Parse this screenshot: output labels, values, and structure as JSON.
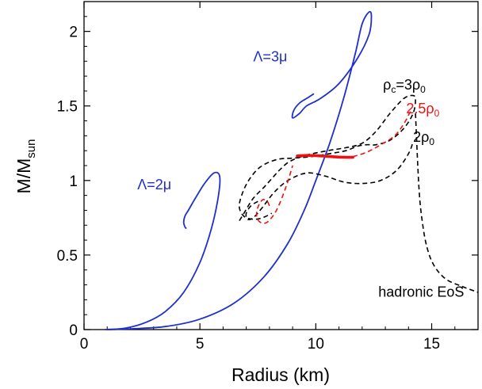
{
  "chart_data": {
    "type": "line",
    "xlabel": "Radius (km)",
    "ylabel_main": "M/M",
    "ylabel_sub": "sun",
    "xlim": [
      0,
      17
    ],
    "ylim": [
      0,
      2.2
    ],
    "xticks": [
      0,
      5,
      10,
      15
    ],
    "yticks": [
      0,
      0.5,
      1,
      1.5,
      2
    ],
    "xtick_labels": [
      "0",
      "5",
      "10",
      "15"
    ],
    "ytick_labels": [
      "0",
      "0.5",
      "1",
      "1.5",
      "2"
    ],
    "grid": false,
    "series": [
      {
        "key": "lambda-3mu",
        "style": "solid",
        "color": "#1f2fcc",
        "x": [
          1.0,
          2.0,
          3.5,
          5.0,
          6.5,
          7.8,
          8.8,
          9.5,
          10.0,
          10.6,
          11.2,
          11.7,
          12.0,
          12.3,
          12.4,
          12.3,
          11.8,
          11.0,
          10.2,
          9.6,
          9.3,
          9.0,
          9.05,
          9.3,
          9.6,
          9.8,
          9.9
        ],
        "y": [
          0.0,
          0.005,
          0.02,
          0.07,
          0.18,
          0.36,
          0.58,
          0.8,
          1.0,
          1.25,
          1.55,
          1.85,
          2.05,
          2.13,
          2.1,
          1.98,
          1.82,
          1.65,
          1.55,
          1.5,
          1.45,
          1.42,
          1.47,
          1.52,
          1.55,
          1.57,
          1.58
        ]
      },
      {
        "key": "lambda-2mu",
        "style": "solid",
        "color": "#1f2fcc",
        "x": [
          0.9,
          1.8,
          2.7,
          3.5,
          4.3,
          5.0,
          5.5,
          5.8,
          5.85,
          5.6,
          5.2,
          4.8,
          4.5,
          4.35,
          4.3,
          4.35,
          4.4
        ],
        "y": [
          0.0,
          0.01,
          0.05,
          0.12,
          0.25,
          0.45,
          0.68,
          0.9,
          1.03,
          1.05,
          0.98,
          0.88,
          0.8,
          0.76,
          0.72,
          0.69,
          0.68
        ]
      },
      {
        "key": "rho-3rho0",
        "style": "dashed",
        "color": "#000000",
        "x": [
          6.7,
          6.9,
          7.3,
          7.8,
          8.2,
          8.5,
          8.9,
          9.6,
          10.5,
          11.3,
          12.0,
          12.6,
          13.2,
          13.8,
          14.2,
          14.3,
          14.2,
          13.8,
          13.2,
          12.6,
          12.2,
          11.8,
          11.3,
          10.6,
          9.8,
          9.0,
          8.3,
          7.6,
          7.1,
          6.8,
          6.7,
          6.9,
          7.3,
          7.7,
          8.1
        ],
        "y": [
          0.73,
          0.78,
          0.88,
          0.96,
          1.03,
          1.08,
          1.13,
          1.17,
          1.2,
          1.22,
          1.25,
          1.33,
          1.45,
          1.55,
          1.57,
          1.54,
          1.45,
          1.35,
          1.27,
          1.24,
          1.24,
          1.23,
          1.2,
          1.18,
          1.16,
          1.15,
          1.14,
          1.09,
          1.0,
          0.9,
          0.82,
          0.76,
          0.74,
          0.75,
          0.78
        ]
      },
      {
        "key": "rho-2rho0",
        "style": "dashed",
        "color": "#000000",
        "x": [
          7.5,
          7.2,
          7.0,
          7.05,
          7.3,
          7.7,
          8.2,
          8.8,
          9.6,
          10.4,
          11.2,
          12.0,
          12.8,
          13.5,
          14.0,
          14.2
        ],
        "y": [
          0.86,
          0.83,
          0.78,
          0.74,
          0.75,
          0.82,
          0.92,
          1.0,
          1.05,
          1.03,
          0.99,
          0.98,
          1.0,
          1.07,
          1.18,
          1.26
        ]
      },
      {
        "key": "rho-2p5rho0",
        "style": "dashed",
        "color": "#ee1111",
        "x": [
          8.0,
          7.9,
          7.7,
          7.5,
          7.45,
          7.6,
          7.9,
          8.3,
          8.7,
          9.0
        ],
        "y": [
          0.83,
          0.86,
          0.87,
          0.82,
          0.76,
          0.72,
          0.72,
          0.8,
          0.95,
          1.1
        ]
      },
      {
        "key": "rho-2p5rho0-upper",
        "style": "dashed",
        "color": "#ee1111",
        "x": [
          11.6,
          12.2,
          12.8,
          13.4,
          13.8,
          14.1
        ],
        "y": [
          1.16,
          1.19,
          1.24,
          1.3,
          1.38,
          1.47
        ]
      },
      {
        "key": "rho-2p5rho0-stable",
        "style": "thick",
        "color": "#ee1111",
        "x": [
          9.2,
          9.6,
          10.0,
          10.5,
          11.0,
          11.6
        ],
        "y": [
          1.165,
          1.168,
          1.167,
          1.162,
          1.157,
          1.155
        ]
      },
      {
        "key": "hadronic",
        "style": "dashed",
        "color": "#000000",
        "x": [
          14.3,
          14.45,
          14.6,
          14.8,
          15.1,
          15.6,
          16.3,
          17.0
        ],
        "y": [
          1.45,
          0.95,
          0.72,
          0.55,
          0.43,
          0.34,
          0.29,
          0.25
        ]
      }
    ],
    "annotations": [
      {
        "key": "lambda3",
        "prefix": "Λ=3μ",
        "color": "#1f2fcc",
        "x": 7.3,
        "y": 1.8
      },
      {
        "key": "lambda2",
        "prefix": "Λ=2μ",
        "color": "#1f2fcc",
        "x": 2.3,
        "y": 0.94
      },
      {
        "key": "rho3",
        "main": "ρ",
        "sub": "c",
        "tail": "=3ρ",
        "tail_sub": "0",
        "color": "#000000",
        "x": 12.9,
        "y": 1.61
      },
      {
        "key": "rho25",
        "main": "2.5ρ",
        "sub": "0",
        "color": "#ee1111",
        "x": 13.9,
        "y": 1.45
      },
      {
        "key": "rho2",
        "main": "2ρ",
        "sub": "0",
        "color": "#000000",
        "x": 14.2,
        "y": 1.26
      },
      {
        "key": "hadronic",
        "prefix": "hadronic EoS",
        "color": "#000000",
        "x": 12.7,
        "y": 0.22
      }
    ]
  }
}
